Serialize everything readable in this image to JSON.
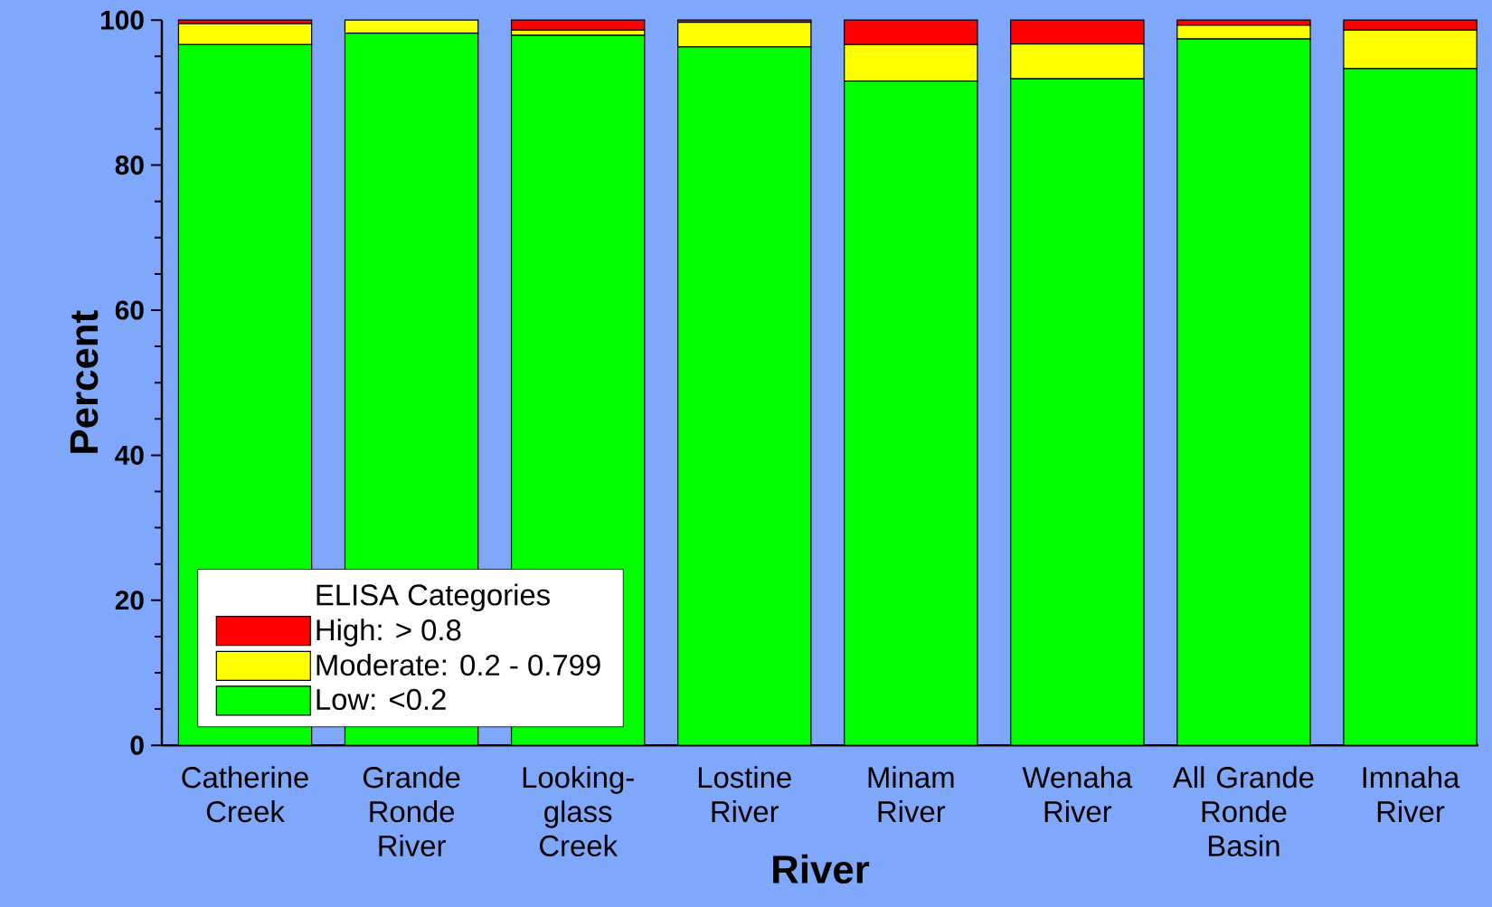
{
  "chart_data": {
    "type": "bar",
    "stacked": true,
    "xlabel": "River",
    "ylabel": "Percent",
    "legend_title": "ELISA Categories",
    "categories": [
      "Catherine Creek",
      "Grande Ronde River",
      "Looking-glass Creek",
      "Lostine River",
      "Minam River",
      "Wenaha River",
      "All Grande Ronde Basin",
      "Imnaha River"
    ],
    "series": [
      {
        "name": "Low:  <0.2",
        "color": "#00ff00",
        "values": [
          96.6,
          98.2,
          97.9,
          96.3,
          91.6,
          91.9,
          97.4,
          93.3
        ]
      },
      {
        "name": "Moderate:  0.2 - 0.799",
        "color": "#ffff00",
        "values": [
          2.9,
          1.8,
          0.7,
          3.4,
          5.0,
          4.8,
          1.9,
          5.3
        ]
      },
      {
        "name": "High:  > 0.8",
        "color": "#ff0000",
        "values": [
          0.5,
          0,
          1.4,
          0.3,
          3.4,
          3.3,
          0.7,
          1.4
        ]
      }
    ],
    "ylim": [
      0,
      100
    ],
    "yticks": [
      0,
      20,
      40,
      60,
      80,
      100
    ],
    "grid": false,
    "legend": "bottom left"
  }
}
